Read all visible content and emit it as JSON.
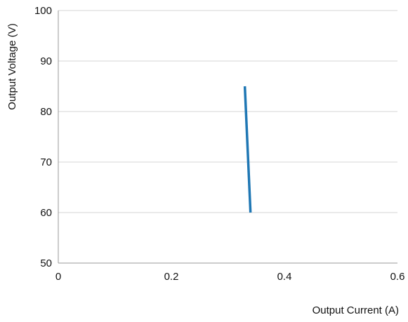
{
  "chart_data": {
    "type": "line",
    "title": "",
    "xlabel": "Output Current (A)",
    "ylabel": "Output Voltage (V)",
    "xlim": [
      0,
      0.6
    ],
    "ylim": [
      50,
      100
    ],
    "x_ticks": [
      0,
      0.2,
      0.4,
      0.6
    ],
    "x_tick_labels": [
      "0",
      "0.2",
      "0.4",
      "0.6"
    ],
    "y_ticks": [
      50,
      60,
      70,
      80,
      90,
      100
    ],
    "y_tick_labels": [
      "50",
      "60",
      "70",
      "80",
      "90",
      "100"
    ],
    "grid": {
      "horizontal": true,
      "vertical": false
    },
    "legend": "none",
    "series": [
      {
        "color": "#1f77b4",
        "x": [
          0.33,
          0.34
        ],
        "y": [
          85,
          60
        ]
      }
    ]
  }
}
